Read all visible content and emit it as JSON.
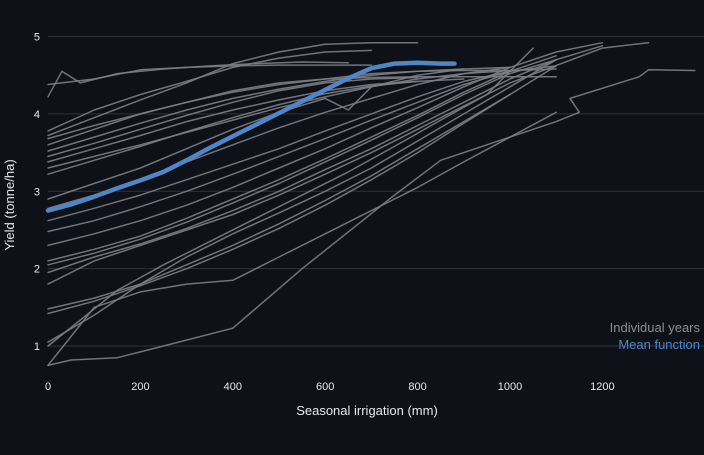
{
  "chart_data": {
    "type": "line",
    "xlabel": "Seasonal irrigation (mm)",
    "ylabel": "Yield (tonne/ha)",
    "xlim": [
      0,
      1420
    ],
    "ylim": [
      0.6,
      5.2
    ],
    "x_ticks": [
      0,
      200,
      400,
      600,
      800,
      1000,
      1200
    ],
    "y_ticks": [
      1,
      2,
      3,
      4,
      5
    ],
    "grid": "horizontal",
    "legend": {
      "placement": "bottom-right",
      "entries": [
        {
          "label": "Individual years",
          "color": "#8a8d94"
        },
        {
          "label": "Mean function",
          "color": "#4f86c6"
        }
      ]
    },
    "colors": {
      "background": "#0f1118",
      "grid": "#2e323c",
      "text": "#e8e8e8",
      "individual": "#7c7f86",
      "mean": "#4f86c6"
    },
    "mean_series": {
      "x": [
        0,
        50,
        100,
        150,
        200,
        250,
        300,
        350,
        400,
        450,
        500,
        550,
        600,
        650,
        700,
        750,
        800,
        850,
        880
      ],
      "y": [
        2.75,
        2.83,
        2.93,
        3.04,
        3.14,
        3.25,
        3.4,
        3.56,
        3.71,
        3.86,
        4.01,
        4.16,
        4.31,
        4.46,
        4.59,
        4.65,
        4.66,
        4.65,
        4.65
      ]
    },
    "individual_series": [
      {
        "x": [
          0,
          100,
          200,
          300,
          400,
          500,
          600,
          700
        ],
        "y": [
          4.38,
          4.45,
          4.57,
          4.6,
          4.62,
          4.63,
          4.63,
          4.63
        ]
      },
      {
        "x": [
          0,
          30,
          70,
          150,
          250,
          350,
          450,
          550,
          650
        ],
        "y": [
          4.22,
          4.55,
          4.4,
          4.52,
          4.58,
          4.62,
          4.65,
          4.67,
          4.66
        ]
      },
      {
        "x": [
          0,
          100,
          200,
          300,
          400,
          500,
          600,
          700
        ],
        "y": [
          3.78,
          4.05,
          4.25,
          4.42,
          4.6,
          4.72,
          4.8,
          4.82
        ]
      },
      {
        "x": [
          0,
          100,
          200,
          300,
          400,
          500,
          600,
          700,
          800
        ],
        "y": [
          3.72,
          3.95,
          4.18,
          4.4,
          4.65,
          4.8,
          4.9,
          4.92,
          4.92
        ]
      },
      {
        "x": [
          0,
          100,
          200,
          300,
          400,
          500,
          600,
          700,
          800,
          900,
          1000,
          1100
        ],
        "y": [
          3.68,
          3.85,
          4.0,
          4.15,
          4.3,
          4.4,
          4.45,
          4.47,
          4.48,
          4.48,
          4.48,
          4.48
        ]
      },
      {
        "x": [
          0,
          100,
          200,
          300,
          400,
          500,
          600,
          700,
          800,
          900,
          1000
        ],
        "y": [
          3.6,
          3.8,
          4.0,
          4.15,
          4.28,
          4.38,
          4.45,
          4.52,
          4.55,
          4.56,
          4.56
        ]
      },
      {
        "x": [
          0,
          100,
          200,
          300,
          400,
          500,
          600,
          700,
          800,
          900,
          1000
        ],
        "y": [
          3.52,
          3.7,
          3.88,
          4.05,
          4.2,
          4.32,
          4.42,
          4.5,
          4.55,
          4.58,
          4.6
        ]
      },
      {
        "x": [
          0,
          100,
          200,
          300,
          400,
          500,
          600,
          700,
          800
        ],
        "y": [
          3.45,
          3.62,
          3.8,
          3.98,
          4.15,
          4.3,
          4.4,
          4.45,
          4.47
        ]
      },
      {
        "x": [
          0,
          100,
          200,
          300,
          400,
          500,
          600,
          700,
          800
        ],
        "y": [
          3.38,
          3.55,
          3.72,
          3.9,
          4.05,
          4.18,
          4.3,
          4.38,
          4.42
        ]
      },
      {
        "x": [
          0,
          100,
          200,
          300,
          400,
          500,
          600,
          700,
          800,
          900,
          1000,
          1100
        ],
        "y": [
          3.3,
          3.45,
          3.6,
          3.76,
          3.92,
          4.08,
          4.22,
          4.35,
          4.45,
          4.52,
          4.56,
          4.58
        ]
      },
      {
        "x": [
          0,
          100,
          200,
          300,
          400,
          500,
          600,
          700,
          800,
          900
        ],
        "y": [
          3.22,
          3.4,
          3.58,
          3.77,
          3.95,
          4.12,
          4.26,
          4.36,
          4.42,
          4.45
        ]
      },
      {
        "x": [
          0,
          100,
          200,
          300,
          400,
          500,
          600,
          650,
          700,
          800,
          900
        ],
        "y": [
          2.9,
          3.1,
          3.3,
          3.55,
          3.8,
          4.02,
          4.2,
          4.05,
          4.35,
          4.5,
          4.58
        ]
      },
      {
        "x": [
          0,
          100,
          200,
          300,
          400,
          500,
          600,
          700,
          800,
          900,
          1000
        ],
        "y": [
          2.78,
          2.95,
          3.15,
          3.38,
          3.6,
          3.82,
          4.02,
          4.2,
          4.38,
          4.52,
          4.6
        ]
      },
      {
        "x": [
          0,
          100,
          200,
          300,
          400,
          500,
          600,
          700,
          800,
          900,
          1000
        ],
        "y": [
          2.62,
          2.78,
          2.95,
          3.15,
          3.35,
          3.55,
          3.78,
          4.0,
          4.22,
          4.42,
          4.55
        ]
      },
      {
        "x": [
          0,
          100,
          200,
          300,
          400,
          500,
          600,
          700,
          800,
          900,
          1000,
          1100
        ],
        "y": [
          2.48,
          2.62,
          2.8,
          3.0,
          3.22,
          3.45,
          3.68,
          3.92,
          4.15,
          4.38,
          4.55,
          4.62
        ]
      },
      {
        "x": [
          0,
          100,
          200,
          300,
          400,
          500,
          600,
          700,
          800,
          900,
          1000,
          1100,
          1200
        ],
        "y": [
          2.3,
          2.45,
          2.62,
          2.82,
          3.05,
          3.3,
          3.55,
          3.82,
          4.08,
          4.35,
          4.6,
          4.8,
          4.92
        ]
      },
      {
        "x": [
          0,
          100,
          200,
          300,
          400,
          500,
          600,
          700,
          800,
          900,
          1000,
          1100
        ],
        "y": [
          2.1,
          2.25,
          2.42,
          2.65,
          2.9,
          3.15,
          3.42,
          3.7,
          3.98,
          4.28,
          4.55,
          4.75
        ]
      },
      {
        "x": [
          0,
          100,
          200,
          300,
          400,
          500,
          600,
          700,
          800,
          900,
          1000,
          1100
        ],
        "y": [
          2.05,
          2.2,
          2.38,
          2.6,
          2.85,
          3.1,
          3.38,
          3.66,
          3.95,
          4.25,
          4.52,
          4.7
        ]
      },
      {
        "x": [
          0,
          100,
          200,
          300,
          400,
          500,
          600,
          700,
          800,
          900,
          1000,
          1100,
          1200
        ],
        "y": [
          1.95,
          2.15,
          2.32,
          2.52,
          2.75,
          3.0,
          3.28,
          3.55,
          3.85,
          4.15,
          4.45,
          4.7,
          4.88
        ]
      },
      {
        "x": [
          0,
          100,
          200,
          300,
          400,
          500,
          600,
          700,
          800,
          900,
          1000,
          1200,
          1300
        ],
        "y": [
          1.8,
          2.1,
          2.3,
          2.5,
          2.7,
          2.95,
          3.22,
          3.5,
          3.8,
          4.1,
          4.4,
          4.85,
          4.92
        ]
      },
      {
        "x": [
          0,
          100,
          200,
          300,
          400,
          500,
          600,
          700,
          800,
          900,
          1000
        ],
        "y": [
          1.48,
          1.62,
          1.8,
          2.05,
          2.3,
          2.58,
          2.88,
          3.2,
          3.55,
          3.9,
          4.25
        ]
      },
      {
        "x": [
          0,
          100,
          200,
          300,
          400,
          500,
          600,
          700,
          800,
          900,
          1000,
          1100
        ],
        "y": [
          1.42,
          1.58,
          1.78,
          2.0,
          2.25,
          2.52,
          2.82,
          3.15,
          3.5,
          3.88,
          4.25,
          4.62
        ]
      },
      {
        "x": [
          0,
          100,
          200,
          300,
          400,
          500,
          600,
          700,
          800,
          900,
          1000,
          1100
        ],
        "y": [
          1.05,
          1.4,
          1.8,
          2.15,
          2.45,
          2.72,
          3.0,
          3.3,
          3.65,
          4.0,
          4.35,
          4.7
        ]
      },
      {
        "x": [
          0,
          150,
          250,
          350,
          450,
          550,
          650,
          750,
          850,
          950,
          1000,
          1050
        ],
        "y": [
          1.0,
          1.72,
          2.05,
          2.35,
          2.65,
          2.95,
          3.25,
          3.58,
          3.92,
          4.25,
          4.55,
          4.85
        ]
      },
      {
        "x": [
          0,
          100,
          200,
          300,
          400,
          500,
          600,
          700,
          800,
          900,
          1000,
          1100
        ],
        "y": [
          0.75,
          1.5,
          1.7,
          1.8,
          1.85,
          2.15,
          2.45,
          2.75,
          3.05,
          3.38,
          3.7,
          4.02
        ]
      },
      {
        "x": [
          0,
          50,
          150,
          250,
          400,
          550,
          750,
          850,
          950,
          1050,
          1100,
          1150,
          1130,
          1280,
          1300,
          1400
        ],
        "y": [
          0.75,
          0.82,
          0.85,
          1.0,
          1.23,
          2.0,
          2.95,
          3.4,
          3.6,
          3.8,
          3.9,
          4.02,
          4.2,
          4.48,
          4.57,
          4.56
        ]
      }
    ]
  }
}
